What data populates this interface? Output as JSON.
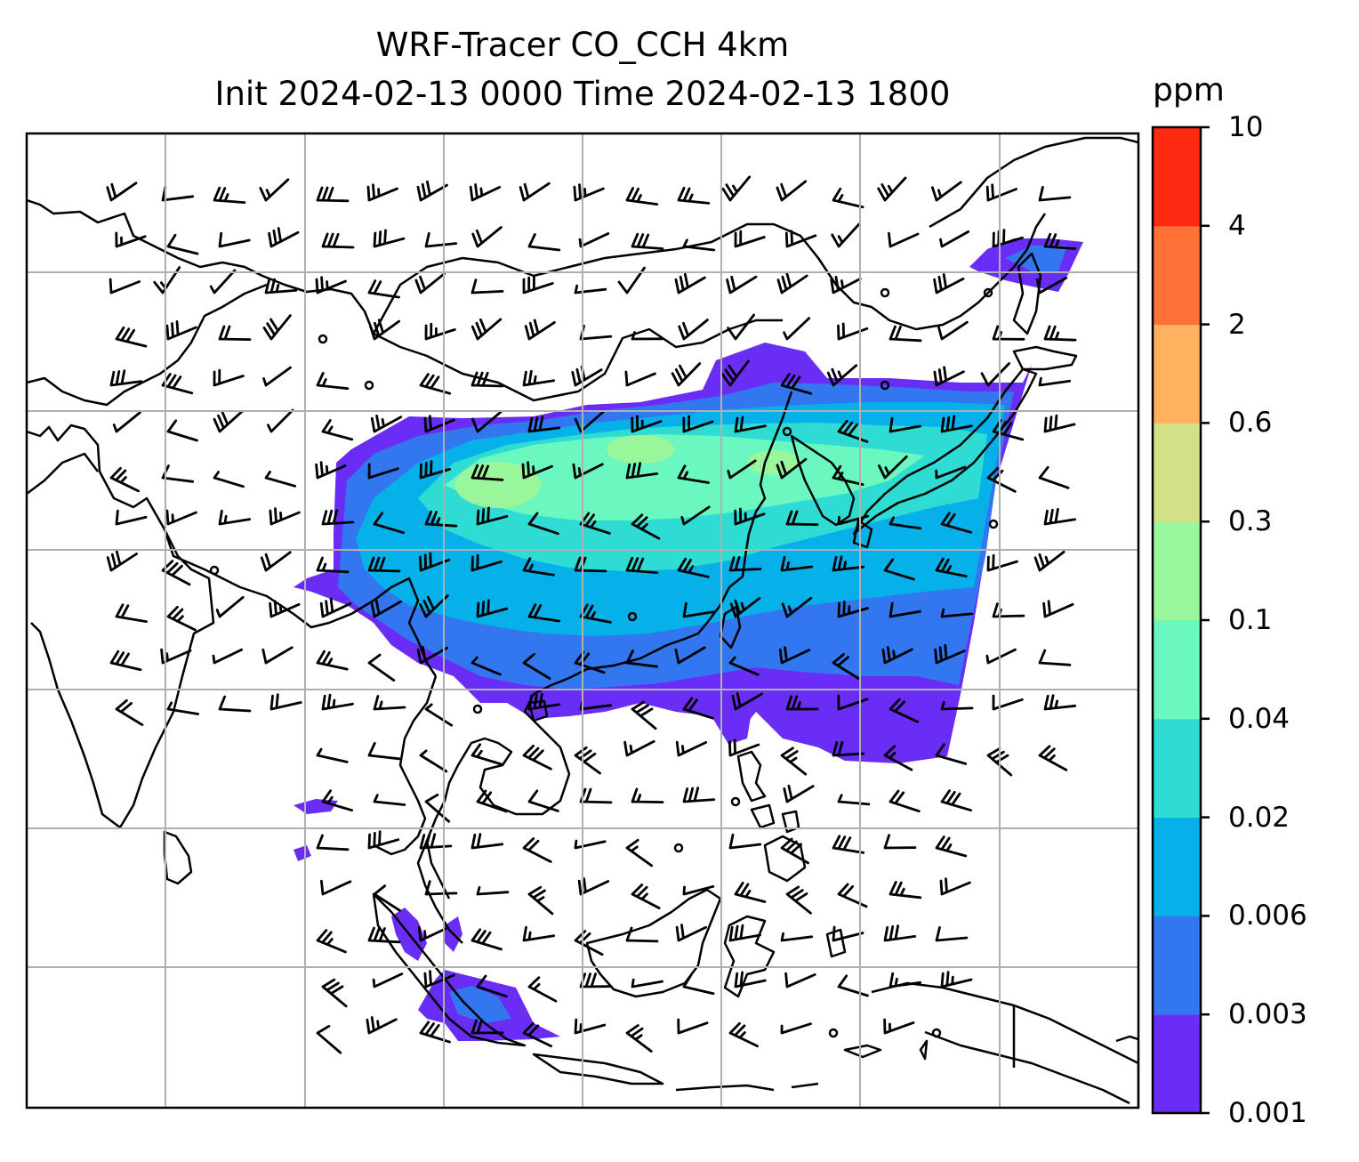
{
  "title_line1": "WRF-Tracer CO_CCH 4km",
  "title_line2": "Init 2024-02-13 0000 Time 2024-02-13 1800",
  "colorbar": {
    "unit": "ppm",
    "tick_labels": [
      "0.001",
      "0.003",
      "0.006",
      "0.02",
      "0.04",
      "0.1",
      "0.3",
      "0.6",
      "2",
      "4",
      "10"
    ],
    "colors": [
      "#6a2df5",
      "#3377f0",
      "#06b0e9",
      "#2fdcd4",
      "#6bf7c0",
      "#9af69b",
      "#d2e188",
      "#ffb160",
      "#ff7137",
      "#ff2a12"
    ]
  },
  "map": {
    "variable": "CO_CCH tracer",
    "projection": "cylindrical",
    "gridlines": true,
    "wind_barbs": true,
    "background": "#ffffff",
    "coastline_color": "#000000",
    "grid_color": "#b0b0b0"
  }
}
